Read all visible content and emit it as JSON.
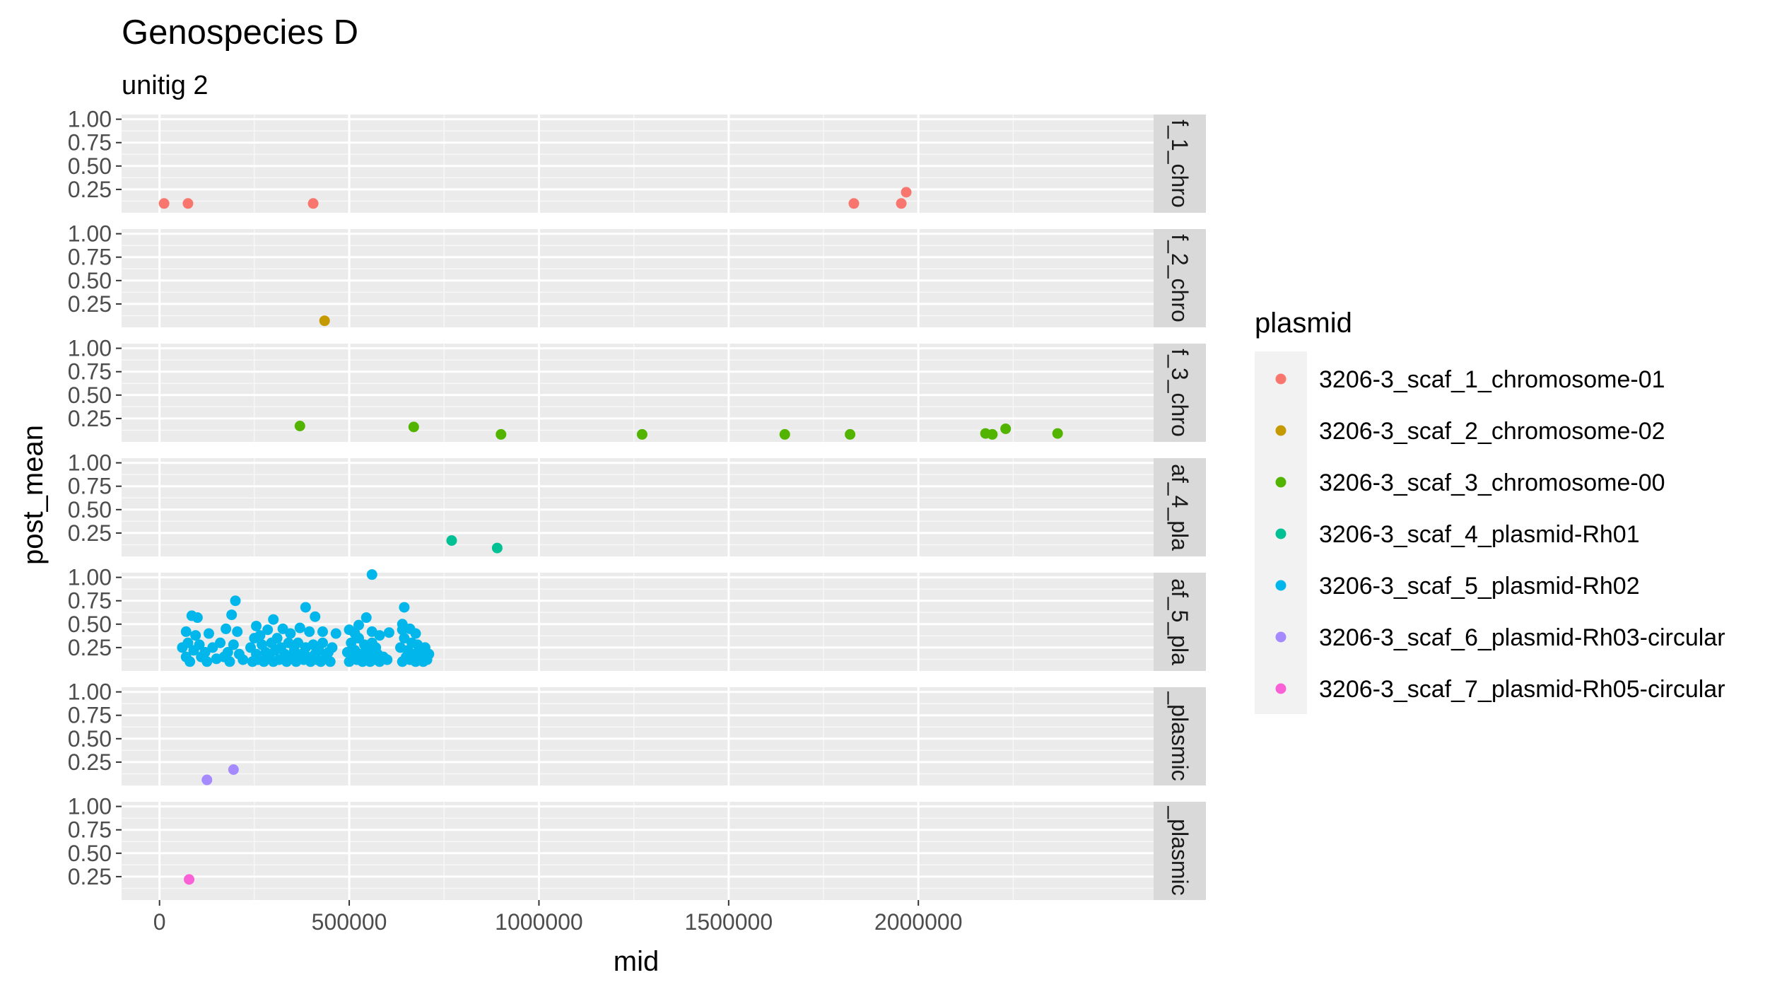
{
  "chart_data": {
    "type": "scatter",
    "title": "Genospecies D",
    "subtitle": "unitig 2",
    "xlabel": "mid",
    "ylabel": "post_mean",
    "xlim": [
      -100000,
      2620000
    ],
    "ylim": [
      0.0,
      1.05
    ],
    "x_ticks": [
      0,
      500000,
      1000000,
      1500000,
      2000000
    ],
    "x_tick_labels": [
      "0",
      "500000",
      "1000000",
      "1500000",
      "2000000"
    ],
    "y_ticks": [
      0.25,
      0.5,
      0.75,
      1.0
    ],
    "y_tick_labels": [
      "0.25",
      "0.50",
      "0.75",
      "1.00"
    ],
    "grid": true,
    "legend_title": "plasmid",
    "legend_position": "right",
    "facet_strips": [
      "f_1_chro",
      "f_2_chro",
      "f_3_chro",
      "af_4_pla",
      "af_5_pla",
      "_plasmic",
      "_plasmic"
    ],
    "series": [
      {
        "name": "3206-3_scaf_1_chromosome-01",
        "color": "#F8766D",
        "points": [
          [
            12000,
            0.1
          ],
          [
            75000,
            0.1
          ],
          [
            405000,
            0.1
          ],
          [
            1830000,
            0.1
          ],
          [
            1955000,
            0.1
          ],
          [
            1968000,
            0.22
          ]
        ]
      },
      {
        "name": "3206-3_scaf_2_chromosome-02",
        "color": "#C49A00",
        "points": [
          [
            435000,
            0.07
          ]
        ]
      },
      {
        "name": "3206-3_scaf_3_chromosome-00",
        "color": "#53B400",
        "points": [
          [
            370000,
            0.17
          ],
          [
            670000,
            0.16
          ],
          [
            900000,
            0.08
          ],
          [
            1272000,
            0.08
          ],
          [
            1648000,
            0.08
          ],
          [
            1820000,
            0.08
          ],
          [
            2177000,
            0.09
          ],
          [
            2195000,
            0.08
          ],
          [
            2230000,
            0.14
          ],
          [
            2367000,
            0.09
          ]
        ]
      },
      {
        "name": "3206-3_scaf_4_plasmid-Rh01",
        "color": "#00C094",
        "points": [
          [
            770000,
            0.17
          ],
          [
            890000,
            0.09
          ]
        ]
      },
      {
        "name": "3206-3_scaf_5_plasmid-Rh02",
        "color": "#00B6EB",
        "points": [
          [
            560000,
            1.03
          ],
          [
            200000,
            0.75
          ],
          [
            385000,
            0.68
          ],
          [
            645000,
            0.68
          ],
          [
            85000,
            0.59
          ],
          [
            100000,
            0.57
          ],
          [
            190000,
            0.6
          ],
          [
            300000,
            0.55
          ],
          [
            410000,
            0.58
          ],
          [
            545000,
            0.57
          ],
          [
            500000,
            0.44
          ],
          [
            525000,
            0.49
          ],
          [
            640000,
            0.5
          ],
          [
            660000,
            0.45
          ],
          [
            70000,
            0.42
          ],
          [
            95000,
            0.38
          ],
          [
            130000,
            0.4
          ],
          [
            175000,
            0.45
          ],
          [
            205000,
            0.42
          ],
          [
            255000,
            0.48
          ],
          [
            265000,
            0.38
          ],
          [
            285000,
            0.44
          ],
          [
            325000,
            0.45
          ],
          [
            345000,
            0.4
          ],
          [
            370000,
            0.46
          ],
          [
            395000,
            0.42
          ],
          [
            430000,
            0.42
          ],
          [
            465000,
            0.4
          ],
          [
            515000,
            0.4
          ],
          [
            560000,
            0.42
          ],
          [
            580000,
            0.38
          ],
          [
            605000,
            0.41
          ],
          [
            640000,
            0.44
          ],
          [
            675000,
            0.4
          ],
          [
            60000,
            0.25
          ],
          [
            70000,
            0.15
          ],
          [
            75000,
            0.3
          ],
          [
            80000,
            0.1
          ],
          [
            90000,
            0.22
          ],
          [
            105000,
            0.28
          ],
          [
            110000,
            0.15
          ],
          [
            120000,
            0.2
          ],
          [
            125000,
            0.1
          ],
          [
            140000,
            0.25
          ],
          [
            150000,
            0.13
          ],
          [
            160000,
            0.3
          ],
          [
            170000,
            0.15
          ],
          [
            180000,
            0.2
          ],
          [
            185000,
            0.1
          ],
          [
            195000,
            0.28
          ],
          [
            210000,
            0.18
          ],
          [
            220000,
            0.12
          ],
          [
            240000,
            0.25
          ],
          [
            245000,
            0.1
          ],
          [
            250000,
            0.35
          ],
          [
            255000,
            0.18
          ],
          [
            260000,
            0.12
          ],
          [
            270000,
            0.28
          ],
          [
            275000,
            0.1
          ],
          [
            280000,
            0.2
          ],
          [
            290000,
            0.15
          ],
          [
            295000,
            0.3
          ],
          [
            300000,
            0.1
          ],
          [
            305000,
            0.22
          ],
          [
            310000,
            0.35
          ],
          [
            315000,
            0.12
          ],
          [
            320000,
            0.25
          ],
          [
            330000,
            0.18
          ],
          [
            335000,
            0.1
          ],
          [
            340000,
            0.3
          ],
          [
            350000,
            0.15
          ],
          [
            355000,
            0.22
          ],
          [
            360000,
            0.1
          ],
          [
            365000,
            0.3
          ],
          [
            375000,
            0.18
          ],
          [
            380000,
            0.12
          ],
          [
            385000,
            0.25
          ],
          [
            390000,
            0.15
          ],
          [
            398000,
            0.1
          ],
          [
            405000,
            0.28
          ],
          [
            410000,
            0.18
          ],
          [
            415000,
            0.12
          ],
          [
            420000,
            0.22
          ],
          [
            425000,
            0.1
          ],
          [
            430000,
            0.3
          ],
          [
            438000,
            0.15
          ],
          [
            445000,
            0.2
          ],
          [
            450000,
            0.1
          ],
          [
            455000,
            0.25
          ],
          [
            495000,
            0.2
          ],
          [
            500000,
            0.1
          ],
          [
            505000,
            0.3
          ],
          [
            510000,
            0.15
          ],
          [
            515000,
            0.22
          ],
          [
            520000,
            0.12
          ],
          [
            525000,
            0.35
          ],
          [
            530000,
            0.18
          ],
          [
            535000,
            0.1
          ],
          [
            540000,
            0.28
          ],
          [
            545000,
            0.15
          ],
          [
            550000,
            0.2
          ],
          [
            555000,
            0.1
          ],
          [
            560000,
            0.3
          ],
          [
            565000,
            0.12
          ],
          [
            570000,
            0.25
          ],
          [
            575000,
            0.18
          ],
          [
            580000,
            0.1
          ],
          [
            590000,
            0.15
          ],
          [
            600000,
            0.12
          ],
          [
            635000,
            0.25
          ],
          [
            640000,
            0.1
          ],
          [
            645000,
            0.35
          ],
          [
            650000,
            0.15
          ],
          [
            655000,
            0.22
          ],
          [
            660000,
            0.12
          ],
          [
            665000,
            0.3
          ],
          [
            670000,
            0.18
          ],
          [
            675000,
            0.1
          ],
          [
            680000,
            0.28
          ],
          [
            685000,
            0.15
          ],
          [
            690000,
            0.2
          ],
          [
            695000,
            0.1
          ],
          [
            700000,
            0.25
          ],
          [
            705000,
            0.12
          ],
          [
            710000,
            0.18
          ]
        ]
      },
      {
        "name": "3206-3_scaf_6_plasmid-Rh03-circular",
        "color": "#A58AFF",
        "points": [
          [
            125000,
            0.06
          ],
          [
            195000,
            0.17
          ]
        ]
      },
      {
        "name": "3206-3_scaf_7_plasmid-Rh05-circular",
        "color": "#FB61D7",
        "points": [
          [
            78000,
            0.22
          ]
        ]
      }
    ]
  }
}
